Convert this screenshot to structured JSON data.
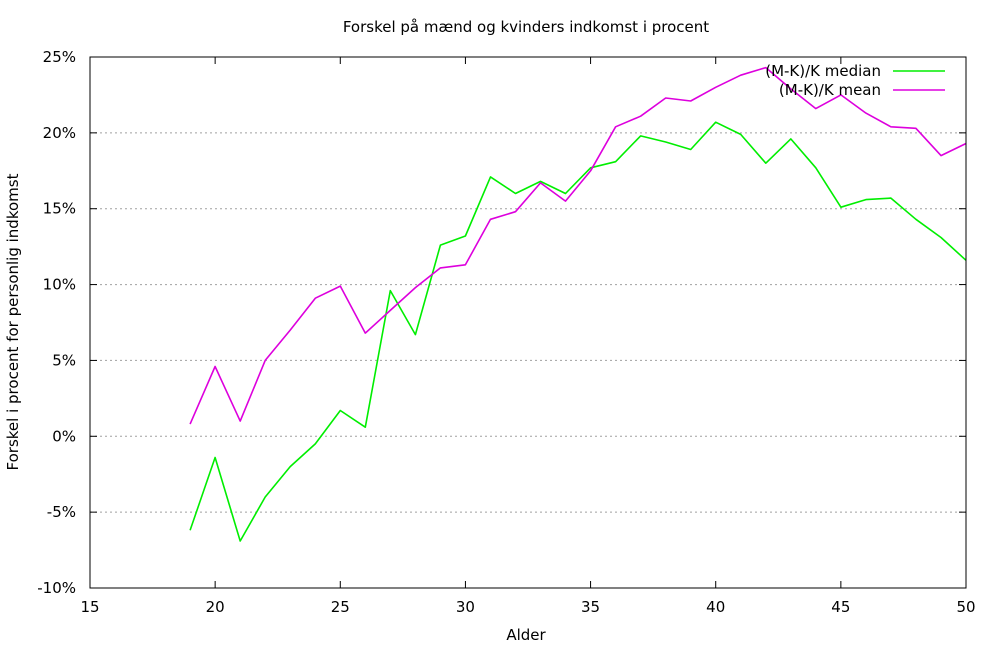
{
  "chart_data": {
    "type": "line",
    "title": "Forskel på mænd og kvinders indkomst i procent",
    "xlabel": "Alder",
    "ylabel": "Forskel i procent for personlig indkomst",
    "xlim": [
      15,
      50
    ],
    "ylim": [
      -10,
      25
    ],
    "xticks": [
      15,
      20,
      25,
      30,
      35,
      40,
      45,
      50
    ],
    "yticks": [
      -10,
      -5,
      0,
      5,
      10,
      15,
      20,
      25
    ],
    "ytick_labels": [
      "-10%",
      "-5%",
      "0%",
      "5%",
      "10%",
      "15%",
      "20%",
      "25%"
    ],
    "grid": "horizontal dotted",
    "legend_position": "top-right",
    "x": [
      19,
      20,
      21,
      22,
      23,
      24,
      25,
      26,
      27,
      28,
      29,
      30,
      31,
      32,
      33,
      34,
      35,
      36,
      37,
      38,
      39,
      40,
      41,
      42,
      43,
      44,
      45,
      46,
      47,
      48,
      49,
      50
    ],
    "series": [
      {
        "name": "(M-K)/K median",
        "color": "#00ee00",
        "values": [
          -6.2,
          -1.4,
          -6.9,
          -4.0,
          -2.0,
          -0.5,
          1.7,
          0.6,
          9.6,
          6.7,
          12.6,
          13.2,
          17.1,
          16.0,
          16.8,
          16.0,
          17.7,
          18.1,
          19.8,
          19.4,
          18.9,
          20.7,
          19.9,
          18.0,
          19.6,
          17.7,
          15.1,
          15.6,
          15.7,
          14.3,
          13.1,
          11.6
        ]
      },
      {
        "name": "(M-K)/K mean",
        "color": "#dd00dd",
        "values": [
          0.8,
          4.6,
          1.0,
          5.0,
          7.0,
          9.1,
          9.9,
          6.8,
          8.3,
          9.8,
          11.1,
          11.3,
          14.3,
          14.8,
          16.7,
          15.5,
          17.5,
          20.4,
          21.1,
          22.3,
          22.1,
          23.0,
          23.8,
          24.3,
          22.9,
          21.6,
          22.5,
          21.3,
          20.4,
          20.3,
          18.5,
          19.3
        ]
      }
    ]
  }
}
